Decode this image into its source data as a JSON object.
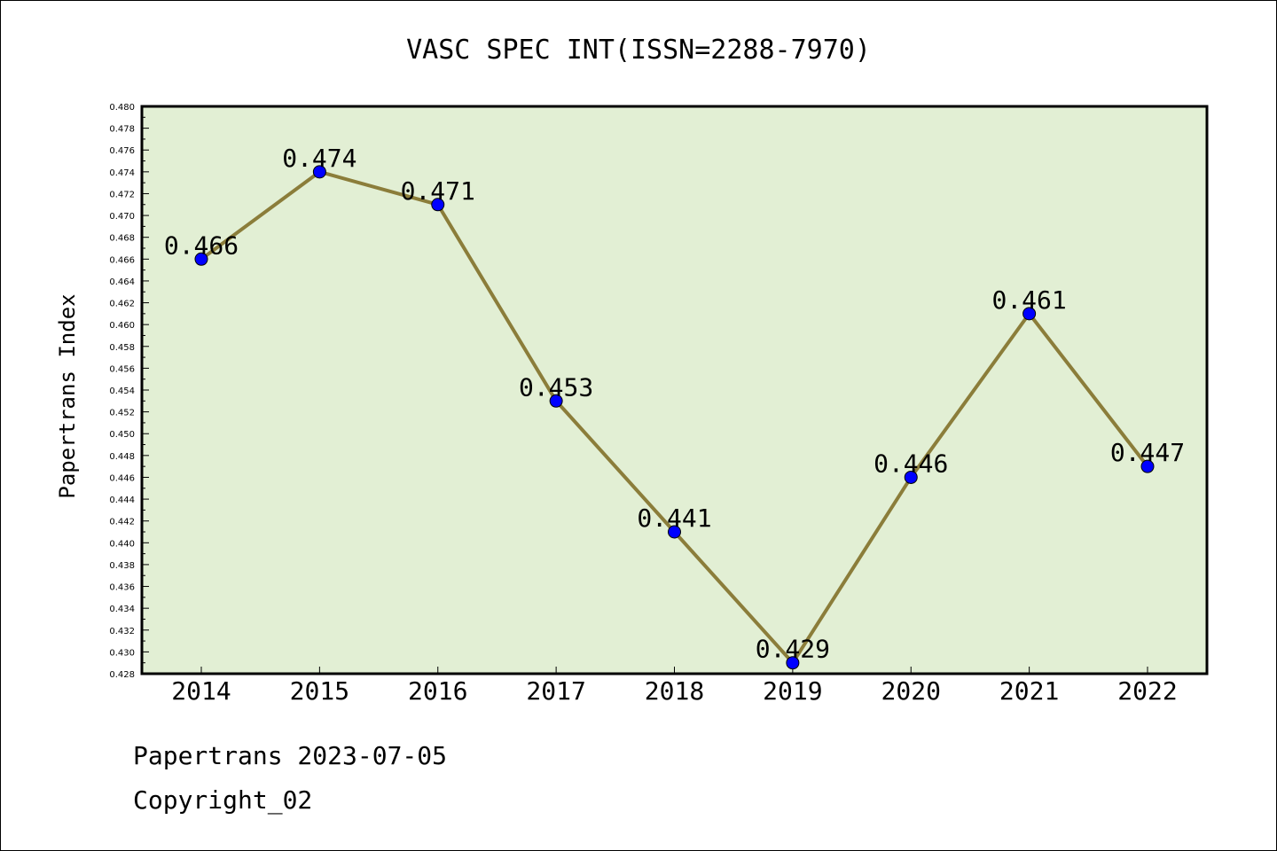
{
  "chart_data": {
    "type": "line",
    "title": "VASC SPEC INT(ISSN=2288-7970)",
    "ylabel": "Papertrans Index",
    "xlabel": "",
    "categories": [
      "2014",
      "2015",
      "2016",
      "2017",
      "2018",
      "2019",
      "2020",
      "2021",
      "2022"
    ],
    "values": [
      0.466,
      0.474,
      0.471,
      0.453,
      0.441,
      0.429,
      0.446,
      0.461,
      0.447
    ],
    "data_labels": [
      "0.466",
      "0.474",
      "0.471",
      "0.453",
      "0.441",
      "0.429",
      "0.446",
      "0.461",
      "0.447"
    ],
    "ylim": [
      0.428,
      0.48
    ],
    "ytick_step": 0.002,
    "grid": false,
    "colors": {
      "plot_background": "#e2efd4",
      "line": "#8b7d3a",
      "marker": "#0000ff"
    }
  },
  "footer": {
    "line1": "Papertrans 2023-07-05",
    "line2": "Copyright_02"
  }
}
